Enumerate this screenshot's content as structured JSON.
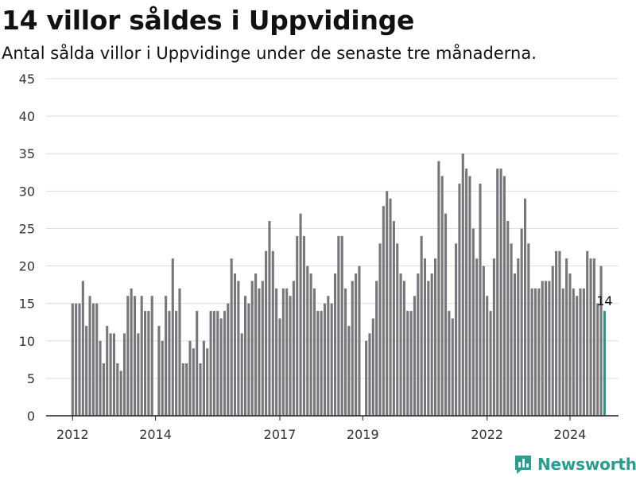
{
  "title": "14 villor såldes i Uppvidinge",
  "subtitle": "Antal sålda villor i Uppvidinge under de senaste tre månaderna.",
  "brand": "Newsworthy",
  "colors": {
    "bar": "#77767b",
    "highlight": "#1a9b8e",
    "grid": "#dddddd",
    "axis": "#222222",
    "brand": "#2a9d8f"
  },
  "chart_data": {
    "type": "bar",
    "title": "",
    "xlabel": "",
    "ylabel": "",
    "ylim": [
      0,
      45
    ],
    "yticks": [
      0,
      5,
      10,
      15,
      20,
      25,
      30,
      35,
      40,
      45
    ],
    "xticks": [
      "2012",
      "2014",
      "2017",
      "2019",
      "2022",
      "2024"
    ],
    "grid": true,
    "x_start": "2012-01",
    "frequency": "monthly",
    "values": [
      15,
      15,
      15,
      18,
      12,
      16,
      15,
      15,
      10,
      7,
      12,
      11,
      11,
      7,
      6,
      11,
      16,
      17,
      16,
      11,
      16,
      14,
      14,
      16,
      0,
      12,
      10,
      16,
      14,
      21,
      14,
      17,
      7,
      7,
      10,
      9,
      14,
      7,
      10,
      9,
      14,
      14,
      14,
      13,
      14,
      15,
      21,
      19,
      18,
      11,
      16,
      15,
      18,
      19,
      17,
      18,
      22,
      26,
      22,
      17,
      13,
      17,
      17,
      16,
      18,
      24,
      27,
      24,
      20,
      19,
      17,
      14,
      14,
      15,
      16,
      15,
      19,
      24,
      24,
      17,
      12,
      18,
      19,
      20,
      0,
      10,
      11,
      13,
      18,
      23,
      28,
      30,
      29,
      26,
      23,
      19,
      18,
      14,
      14,
      16,
      19,
      24,
      21,
      18,
      19,
      21,
      34,
      32,
      27,
      14,
      13,
      23,
      31,
      35,
      33,
      32,
      25,
      21,
      31,
      20,
      16,
      14,
      21,
      33,
      33,
      32,
      26,
      23,
      19,
      21,
      25,
      29,
      23,
      17,
      17,
      17,
      18,
      18,
      18,
      20,
      22,
      22,
      17,
      21,
      19,
      17,
      16,
      17,
      17,
      22,
      21,
      21,
      15,
      20,
      14
    ],
    "highlight_last": true,
    "annotations": [
      {
        "text": "14",
        "at": "last"
      }
    ]
  }
}
